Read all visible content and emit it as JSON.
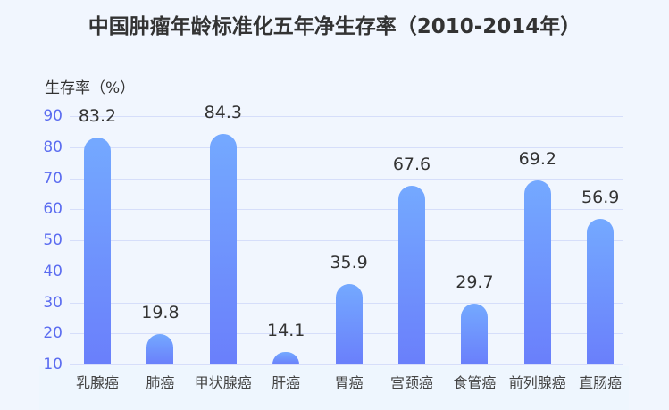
{
  "chart_data": {
    "type": "bar",
    "title": "中国肿瘤年龄标准化五年净生存率（2010-2014年）",
    "xlabel": "",
    "ylabel": "生存率（%）",
    "categories": [
      "乳腺癌",
      "肺癌",
      "甲状腺癌",
      "肝癌",
      "胃癌",
      "宫颈癌",
      "食管癌",
      "前列腺癌",
      "直肠癌"
    ],
    "values": [
      83.2,
      19.8,
      84.3,
      14.1,
      35.9,
      67.6,
      29.7,
      69.2,
      56.9
    ],
    "value_labels": [
      "83.2",
      "19.8",
      "84.3",
      "14.1",
      "35.9",
      "67.6",
      "29.7",
      "69.2",
      "56.9"
    ],
    "ylim": [
      10,
      90
    ],
    "yticks": [
      "90",
      "80",
      "70",
      "60",
      "50",
      "40",
      "30",
      "20",
      "10"
    ],
    "grid": true,
    "legend": null,
    "colors": {
      "bar_top": "#74a9ff",
      "bar_bottom": "#6a7ffb",
      "ytick": "#5b6cf0",
      "gridline": "#d6defa",
      "background": "#f1f6fe"
    }
  }
}
